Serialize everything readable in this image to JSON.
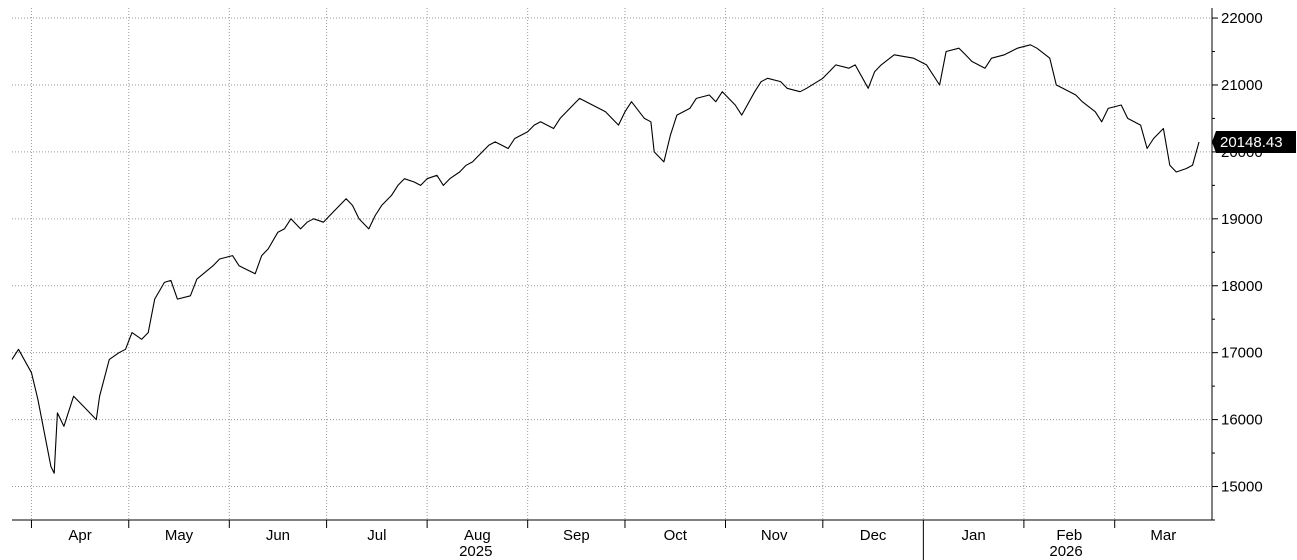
{
  "chart_data": {
    "type": "line",
    "title": "",
    "xlabel": "",
    "ylabel": "",
    "ylim": [
      14500,
      22150
    ],
    "yticks": [
      15000,
      16000,
      17000,
      18000,
      19000,
      20000,
      21000,
      22000
    ],
    "ytick_labels": [
      "15000",
      "16000",
      "17000",
      "18000",
      "19000",
      "20000",
      "21000",
      "22000"
    ],
    "xlim": [
      "2025-03-26",
      "2026-03-31"
    ],
    "month_ticks": [
      "2025-04-01",
      "2025-05-01",
      "2025-06-01",
      "2025-07-01",
      "2025-08-01",
      "2025-09-01",
      "2025-10-01",
      "2025-11-01",
      "2025-12-01",
      "2026-01-01",
      "2026-02-01",
      "2026-03-01"
    ],
    "month_labels": [
      "Apr",
      "May",
      "Jun",
      "Jul",
      "Aug",
      "Sep",
      "Oct",
      "Nov",
      "Dec",
      "Jan",
      "Feb",
      "Mar"
    ],
    "year_labels": [
      {
        "text": "2025",
        "date": "2025-08-16"
      },
      {
        "text": "2026",
        "date": "2026-02-14"
      }
    ],
    "year_divider_date": "2026-01-01",
    "grid": true,
    "last_value": "20148.43",
    "line_color": "#000000",
    "series": [
      {
        "x": [
          "2025-03-26",
          "2025-03-28",
          "2025-04-01",
          "2025-04-03",
          "2025-04-07",
          "2025-04-08",
          "2025-04-09",
          "2025-04-11",
          "2025-04-14",
          "2025-04-17",
          "2025-04-21",
          "2025-04-22",
          "2025-04-25",
          "2025-04-28",
          "2025-04-30",
          "2025-05-02",
          "2025-05-05",
          "2025-05-07",
          "2025-05-09",
          "2025-05-12",
          "2025-05-14",
          "2025-05-16",
          "2025-05-20",
          "2025-05-22",
          "2025-05-27",
          "2025-05-29",
          "2025-06-02",
          "2025-06-04",
          "2025-06-06",
          "2025-06-09",
          "2025-06-11",
          "2025-06-13",
          "2025-06-16",
          "2025-06-18",
          "2025-06-20",
          "2025-06-23",
          "2025-06-25",
          "2025-06-27",
          "2025-06-30",
          "2025-07-02",
          "2025-07-07",
          "2025-07-09",
          "2025-07-11",
          "2025-07-14",
          "2025-07-16",
          "2025-07-18",
          "2025-07-21",
          "2025-07-23",
          "2025-07-25",
          "2025-07-28",
          "2025-07-30",
          "2025-08-01",
          "2025-08-04",
          "2025-08-06",
          "2025-08-08",
          "2025-08-11",
          "2025-08-13",
          "2025-08-15",
          "2025-08-18",
          "2025-08-20",
          "2025-08-22",
          "2025-08-26",
          "2025-08-28",
          "2025-09-01",
          "2025-09-03",
          "2025-09-05",
          "2025-09-09",
          "2025-09-11",
          "2025-09-15",
          "2025-09-17",
          "2025-09-19",
          "2025-09-23",
          "2025-09-25",
          "2025-09-29",
          "2025-10-01",
          "2025-10-03",
          "2025-10-07",
          "2025-10-09",
          "2025-10-10",
          "2025-10-13",
          "2025-10-15",
          "2025-10-17",
          "2025-10-21",
          "2025-10-23",
          "2025-10-27",
          "2025-10-29",
          "2025-10-31",
          "2025-11-04",
          "2025-11-06",
          "2025-11-10",
          "2025-11-12",
          "2025-11-14",
          "2025-11-18",
          "2025-11-20",
          "2025-11-24",
          "2025-11-26",
          "2025-12-01",
          "2025-12-03",
          "2025-12-05",
          "2025-12-09",
          "2025-12-11",
          "2025-12-15",
          "2025-12-17",
          "2025-12-19",
          "2025-12-23",
          "2025-12-29",
          "2026-01-02",
          "2026-01-06",
          "2026-01-08",
          "2026-01-12",
          "2026-01-14",
          "2026-01-16",
          "2026-01-20",
          "2026-01-22",
          "2026-01-26",
          "2026-01-28",
          "2026-01-30",
          "2026-02-03",
          "2026-02-05",
          "2026-02-09",
          "2026-02-11",
          "2026-02-13",
          "2026-02-17",
          "2026-02-19",
          "2026-02-23",
          "2026-02-25",
          "2026-02-27",
          "2026-03-03",
          "2026-03-05",
          "2026-03-09",
          "2026-03-11",
          "2026-03-13",
          "2026-03-16",
          "2026-03-18",
          "2026-03-20",
          "2026-03-23",
          "2026-03-25",
          "2026-03-27"
        ],
        "y": [
          16900,
          17050,
          16700,
          16300,
          15300,
          15200,
          16100,
          15900,
          16350,
          16200,
          16000,
          16350,
          16900,
          17000,
          17050,
          17300,
          17200,
          17300,
          17800,
          18050,
          18080,
          17800,
          17850,
          18100,
          18300,
          18400,
          18450,
          18300,
          18250,
          18180,
          18450,
          18550,
          18800,
          18850,
          19000,
          18850,
          18950,
          19000,
          18950,
          19050,
          19300,
          19200,
          19000,
          18850,
          19050,
          19200,
          19350,
          19500,
          19600,
          19550,
          19500,
          19600,
          19650,
          19500,
          19600,
          19700,
          19800,
          19850,
          20000,
          20100,
          20150,
          20050,
          20200,
          20300,
          20400,
          20450,
          20350,
          20500,
          20700,
          20800,
          20750,
          20650,
          20600,
          20400,
          20600,
          20750,
          20500,
          20450,
          20000,
          19850,
          20250,
          20550,
          20650,
          20800,
          20850,
          20750,
          20900,
          20700,
          20550,
          20900,
          21050,
          21100,
          21050,
          20950,
          20900,
          20950,
          21100,
          21200,
          21300,
          21250,
          21300,
          20950,
          21200,
          21300,
          21450,
          21400,
          21300,
          21000,
          21500,
          21550,
          21450,
          21350,
          21250,
          21400,
          21450,
          21500,
          21550,
          21600,
          21550,
          21400,
          21000,
          20950,
          20850,
          20750,
          20600,
          20450,
          20650,
          20700,
          20500,
          20400,
          20050,
          20200,
          20350,
          19800,
          19700,
          19750,
          19800,
          20148.43
        ]
      }
    ]
  }
}
